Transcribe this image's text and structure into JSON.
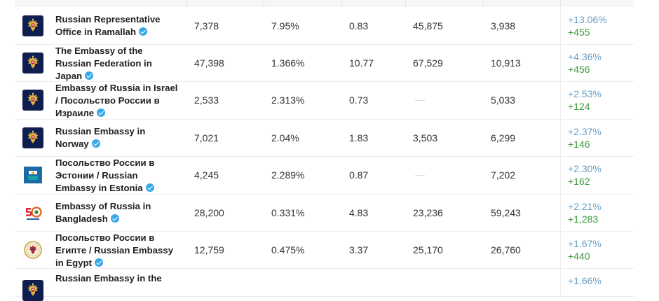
{
  "rows": [
    {
      "name": "Russian Representative Office in Ramallah",
      "avatar": "emblem-icon",
      "c1": "7,378",
      "c2": "7.95%",
      "c3": "0.83",
      "c4": "45,875",
      "c5": "3,938",
      "pct": "+13.06%",
      "abs": "+455"
    },
    {
      "name": "The Embassy of the Russian Federation in Japan",
      "avatar": "emblem-icon",
      "c1": "47,398",
      "c2": "1.366%",
      "c3": "10.77",
      "c4": "67,529",
      "c5": "10,913",
      "pct": "+4.36%",
      "abs": "+456"
    },
    {
      "name": "Embassy of Russia in Israel / Посольство России в Израиле",
      "avatar": "emblem-icon",
      "c1": "2,533",
      "c2": "2.313%",
      "c3": "0.73",
      "c4": "",
      "c5": "5,033",
      "pct": "+2.53%",
      "abs": "+124"
    },
    {
      "name": "Russian Embassy in Norway",
      "avatar": "emblem-icon",
      "c1": "7,021",
      "c2": "2.04%",
      "c3": "1.83",
      "c4": "3,503",
      "c5": "6,299",
      "pct": "+2.37%",
      "abs": "+146"
    },
    {
      "name": "Посольство России в Эстонии / Russian Embassy in Estonia",
      "avatar": "estonia-logo-icon",
      "c1": "4,245",
      "c2": "2.289%",
      "c3": "0.87",
      "c4": "",
      "c5": "7,202",
      "pct": "+2.30%",
      "abs": "+162"
    },
    {
      "name": "Embassy of Russia in Bangladesh",
      "avatar": "anniversary-50-logo-icon",
      "c1": "28,200",
      "c2": "0.331%",
      "c3": "4.83",
      "c4": "23,236",
      "c5": "59,243",
      "pct": "+2.21%",
      "abs": "+1,283"
    },
    {
      "name": "Посольство России в Египте / Russian Embassy in Egypt",
      "avatar": "emblem-seal-icon",
      "c1": "12,759",
      "c2": "0.475%",
      "c3": "3.37",
      "c4": "25,170",
      "c5": "26,760",
      "pct": "+1.67%",
      "abs": "+440"
    },
    {
      "name": "Russian Embassy in the",
      "avatar": "emblem-icon",
      "c1": "",
      "c2": "",
      "c3": "",
      "c4": "",
      "c5": "",
      "pct": "+1.66%",
      "abs": ""
    }
  ],
  "colors": {
    "pct": "#6a9ec2",
    "abs": "#3e9a3e",
    "avatar_dark": "#0f1e4f",
    "verified": "#3aa8e8"
  }
}
